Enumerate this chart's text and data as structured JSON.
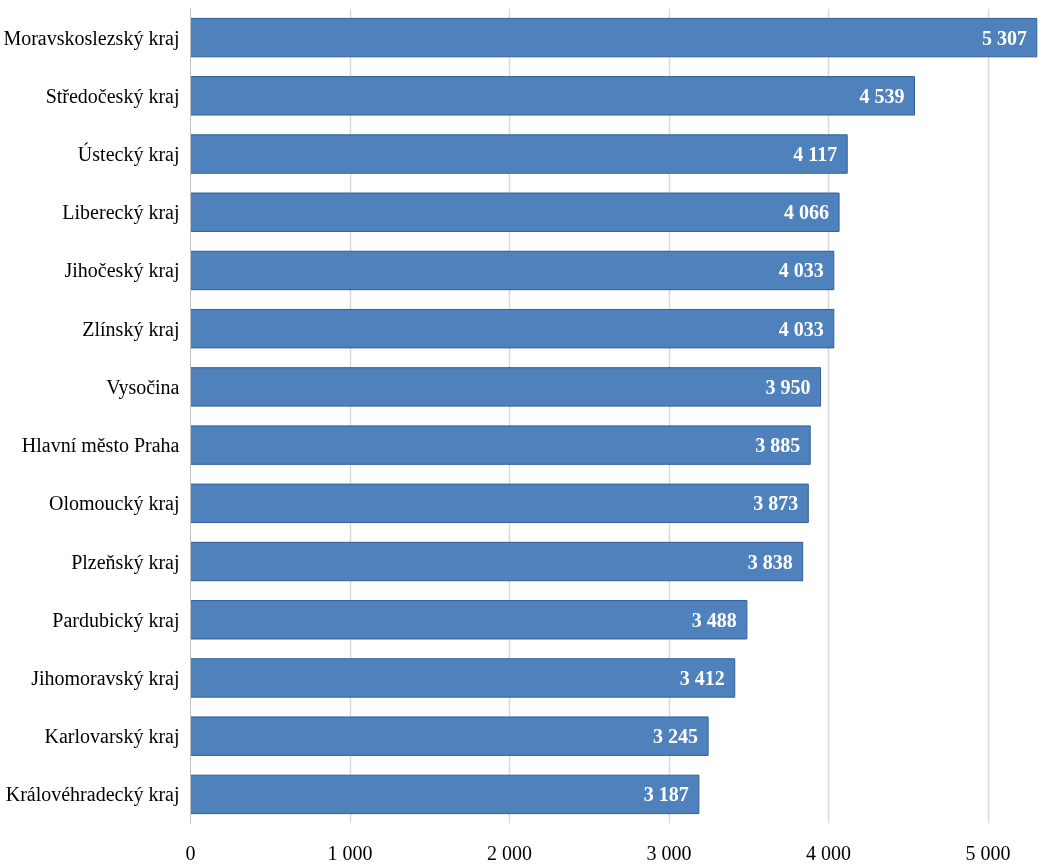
{
  "chart_data": {
    "type": "bar",
    "orientation": "horizontal",
    "categories": [
      "Moravskoslezský kraj",
      "Středočeský kraj",
      "Ústecký kraj",
      "Liberecký kraj",
      "Jihočeský kraj",
      "Zlínský kraj",
      "Vysočina",
      "Hlavní město Praha",
      "Olomoucký kraj",
      "Plzeňský kraj",
      "Pardubický kraj",
      "Jihomoravský kraj",
      "Karlovarský kraj",
      "Královéhradecký kraj"
    ],
    "values": [
      5307,
      4539,
      4117,
      4066,
      4033,
      4033,
      3950,
      3885,
      3873,
      3838,
      3488,
      3412,
      3245,
      3187
    ],
    "value_labels": [
      "5 307",
      "4 539",
      "4 117",
      "4 066",
      "4 033",
      "4 033",
      "3 950",
      "3 885",
      "3 873",
      "3 838",
      "3 488",
      "3 412",
      "3 245",
      "3 187"
    ],
    "color": "#4f81bd",
    "xlim": [
      0,
      5310
    ],
    "xticks": [
      {
        "value": 0,
        "label": "0"
      },
      {
        "value": 1000,
        "label": "1 000"
      },
      {
        "value": 2000,
        "label": "2 000"
      },
      {
        "value": 3000,
        "label": "3 000"
      },
      {
        "value": 4000,
        "label": "4 000"
      },
      {
        "value": 5000,
        "label": "5 000"
      }
    ],
    "grid": "x"
  }
}
